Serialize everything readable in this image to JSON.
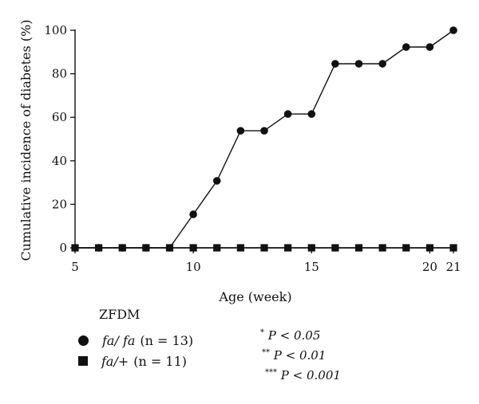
{
  "chart_data": {
    "type": "line",
    "xlabel": "Age (week)",
    "ylabel": "Cumulative incidence of diabetes (%)",
    "xlim": [
      5,
      21
    ],
    "ylim": [
      0,
      100
    ],
    "x_ticks": [
      5,
      10,
      15,
      20,
      21
    ],
    "y_ticks": [
      0,
      20,
      40,
      60,
      80,
      100
    ],
    "grid": false,
    "series": [
      {
        "name": "fa/fa (n = 13)",
        "marker": "circle",
        "color": "#111111",
        "x": [
          5,
          6,
          7,
          8,
          9,
          10,
          11,
          12,
          13,
          14,
          15,
          16,
          17,
          18,
          19,
          20,
          21
        ],
        "y": [
          0,
          0,
          0,
          0,
          0,
          15.4,
          30.8,
          53.8,
          53.8,
          61.5,
          61.5,
          84.6,
          84.6,
          84.6,
          92.3,
          92.3,
          100
        ]
      },
      {
        "name": "fa/+ (n = 11)",
        "marker": "square",
        "color": "#111111",
        "x": [
          5,
          6,
          7,
          8,
          9,
          10,
          11,
          12,
          13,
          14,
          15,
          16,
          17,
          18,
          19,
          20,
          21
        ],
        "y": [
          0,
          0,
          0,
          0,
          0,
          0,
          0,
          0,
          0,
          0,
          0,
          0,
          0,
          0,
          0,
          0,
          0
        ]
      }
    ]
  },
  "legend": {
    "title": "ZFDM",
    "entries": [
      {
        "genotype": "fa/ fa",
        "count": "(n = 13)"
      },
      {
        "genotype": "fa/+",
        "count": "(n = 11)"
      }
    ]
  },
  "significance": [
    {
      "stars": "*",
      "text": "P < 0.05"
    },
    {
      "stars": "**",
      "text": "P < 0.01"
    },
    {
      "stars": "***",
      "text": "P < 0.001"
    }
  ]
}
